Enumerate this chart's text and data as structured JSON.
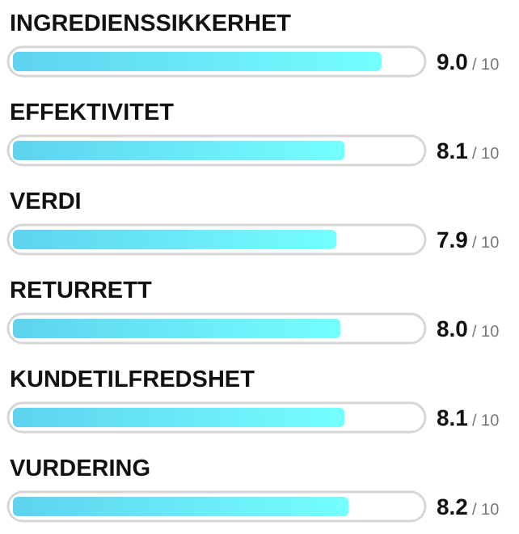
{
  "chart_data": {
    "type": "bar",
    "orientation": "horizontal",
    "categories": [
      "INGREDIENSSIKKERHET",
      "EFFEKTIVITET",
      "VERDI",
      "RETURRETT",
      "KUNDETILFREDSHET",
      "VURDERING"
    ],
    "values": [
      9.0,
      8.1,
      7.9,
      8.0,
      8.1,
      8.2
    ],
    "value_labels": [
      "9.0",
      "8.1",
      "7.9",
      "8.0",
      "8.1",
      "8.2"
    ],
    "annotations": [
      "/ 10",
      "/ 10",
      "/ 10",
      "/ 10",
      "/ 10",
      "/ 10"
    ],
    "color": "#5ed3ef"
  }
}
